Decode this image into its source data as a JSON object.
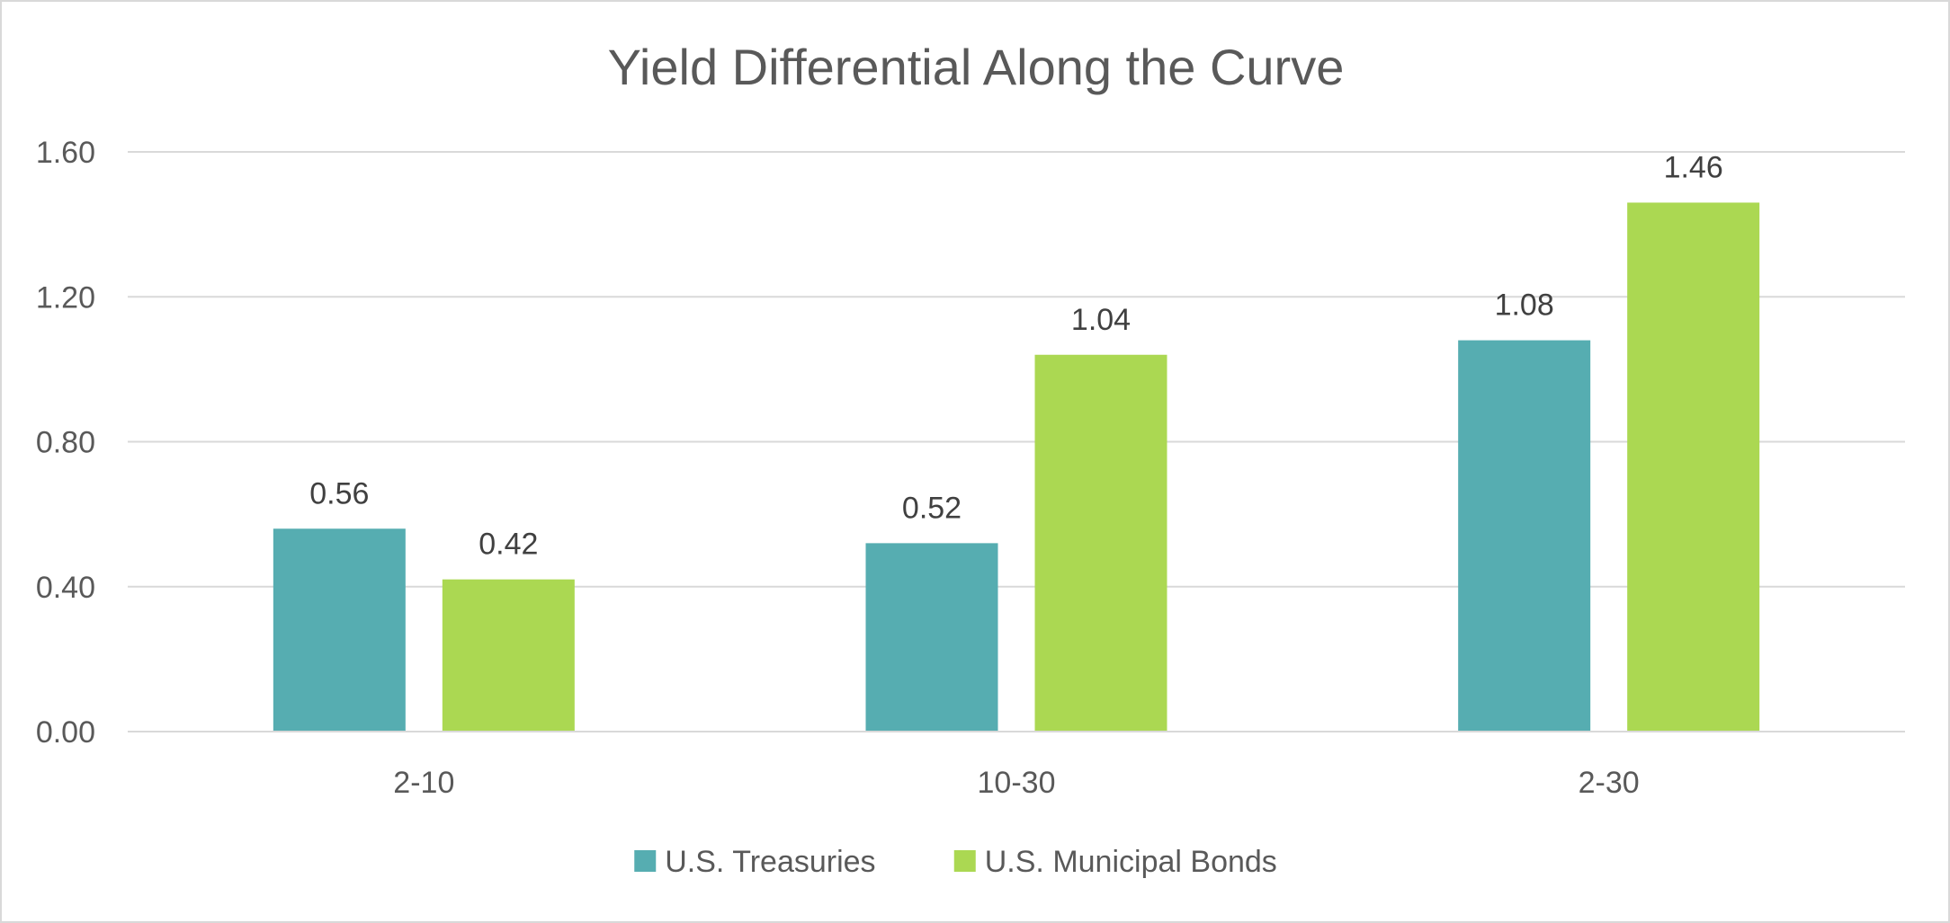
{
  "chart_data": {
    "type": "bar",
    "title": "Yield Differential Along the Curve",
    "xlabel": "",
    "ylabel": "",
    "categories": [
      "2-10",
      "10-30",
      "2-30"
    ],
    "series": [
      {
        "name": "U.S. Treasuries",
        "values": [
          0.56,
          0.52,
          1.08
        ],
        "color": "#56ADB1"
      },
      {
        "name": "U.S. Municipal Bonds",
        "values": [
          0.42,
          1.04,
          1.46
        ],
        "color": "#ABD852"
      }
    ],
    "ylim": [
      0,
      1.6
    ],
    "yticks": [
      "0.00",
      "0.40",
      "0.80",
      "1.20",
      "1.60"
    ],
    "data_labels": true,
    "grid": true,
    "legend_position": "bottom"
  }
}
